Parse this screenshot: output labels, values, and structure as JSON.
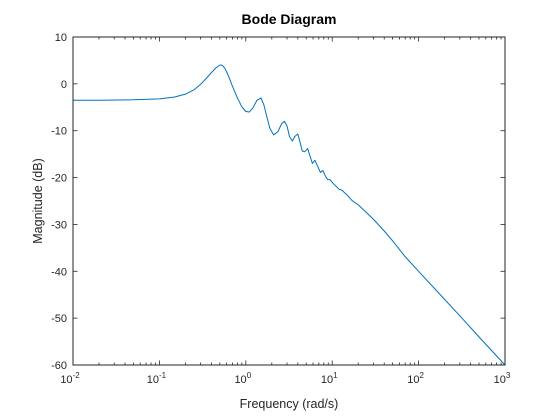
{
  "chart_data": {
    "type": "line",
    "title": "Bode Diagram",
    "xlabel": "Frequency (rad/s)",
    "ylabel": "Magnitude (dB)",
    "xscale": "log",
    "xlim": [
      0.01,
      1000
    ],
    "ylim": [
      -60,
      10
    ],
    "xticks": [
      {
        "value": 0.01,
        "base": "10",
        "exp": "-2"
      },
      {
        "value": 0.1,
        "base": "10",
        "exp": "-1"
      },
      {
        "value": 1,
        "base": "10",
        "exp": "0"
      },
      {
        "value": 10,
        "base": "10",
        "exp": "1"
      },
      {
        "value": 100,
        "base": "10",
        "exp": "2"
      },
      {
        "value": 1000,
        "base": "10",
        "exp": "3"
      }
    ],
    "yticks": [
      {
        "value": 10,
        "label": "10"
      },
      {
        "value": 0,
        "label": "0"
      },
      {
        "value": -10,
        "label": "-10"
      },
      {
        "value": -20,
        "label": "-20"
      },
      {
        "value": -30,
        "label": "-30"
      },
      {
        "value": -40,
        "label": "-40"
      },
      {
        "value": -50,
        "label": "-50"
      },
      {
        "value": -60,
        "label": "-60"
      }
    ],
    "grid": false,
    "line_color": "#0072bd",
    "series": [
      {
        "x": [
          0.01,
          0.02,
          0.05,
          0.1,
          0.15,
          0.2,
          0.25,
          0.3,
          0.35,
          0.4,
          0.45,
          0.5,
          0.53,
          0.57,
          0.62,
          0.7,
          0.8,
          0.9,
          1.0,
          1.1,
          1.2,
          1.35,
          1.5,
          1.62,
          1.75,
          1.9,
          2.1,
          2.35,
          2.6,
          2.8,
          3.0,
          3.2,
          3.45,
          3.7,
          4.0,
          4.25,
          4.5,
          4.8,
          5.2,
          5.6,
          5.9,
          6.3,
          6.8,
          7.3,
          7.8,
          8.3,
          8.8,
          9.5,
          10.2,
          11,
          12,
          13,
          14,
          15,
          17,
          20,
          25,
          30,
          40,
          50,
          70,
          100,
          200,
          300,
          500,
          1000
        ],
        "y": [
          -3.5,
          -3.5,
          -3.4,
          -3.2,
          -2.8,
          -2.2,
          -1.3,
          -0.1,
          1.2,
          2.4,
          3.4,
          4.0,
          4.0,
          3.4,
          2.0,
          -0.5,
          -3.0,
          -4.9,
          -5.9,
          -6.0,
          -5.2,
          -3.5,
          -3.0,
          -4.5,
          -7.0,
          -9.5,
          -10.9,
          -10.2,
          -8.5,
          -8.0,
          -9.0,
          -11.2,
          -12.2,
          -11.2,
          -10.7,
          -12.5,
          -14.3,
          -14.5,
          -13.8,
          -15.7,
          -17.0,
          -16.3,
          -17.6,
          -18.9,
          -18.5,
          -19.6,
          -20.4,
          -20.5,
          -21.2,
          -21.8,
          -22.5,
          -22.7,
          -23.3,
          -23.8,
          -24.9,
          -25.8,
          -27.5,
          -28.9,
          -31.4,
          -33.5,
          -36.9,
          -40.0,
          -46.0,
          -49.5,
          -54.0,
          -60.0
        ]
      }
    ]
  }
}
